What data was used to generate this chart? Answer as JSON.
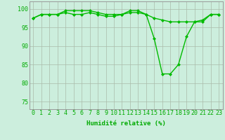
{
  "x": [
    0,
    1,
    2,
    3,
    4,
    5,
    6,
    7,
    8,
    9,
    10,
    11,
    12,
    13,
    14,
    15,
    16,
    17,
    18,
    19,
    20,
    21,
    22,
    23
  ],
  "series1": [
    97.5,
    98.5,
    98.5,
    98.5,
    99.0,
    98.5,
    98.5,
    99.0,
    98.5,
    98.0,
    98.0,
    98.5,
    99.0,
    99.0,
    98.5,
    97.5,
    97.0,
    96.5,
    96.5,
    96.5,
    96.5,
    97.0,
    98.5,
    98.5
  ],
  "series2": [
    97.5,
    98.5,
    98.5,
    98.5,
    99.5,
    99.5,
    99.5,
    99.5,
    99.0,
    98.5,
    98.5,
    98.5,
    99.5,
    99.5,
    98.5,
    92.0,
    82.5,
    82.5,
    85.0,
    92.5,
    96.5,
    96.5,
    98.5,
    98.5
  ],
  "line_color": "#00bb00",
  "marker": "D",
  "markersize": 2.0,
  "linewidth": 1.0,
  "bg_color": "#cceedd",
  "grid_color": "#aabbaa",
  "xlabel": "Humidité relative (%)",
  "ylabel_ticks": [
    75,
    80,
    85,
    90,
    95,
    100
  ],
  "xlim": [
    -0.5,
    23.5
  ],
  "ylim": [
    73,
    102
  ],
  "xlabel_fontsize": 6.5,
  "tick_fontsize": 6.0,
  "tick_color": "#00aa00",
  "xlabel_color": "#00aa00"
}
